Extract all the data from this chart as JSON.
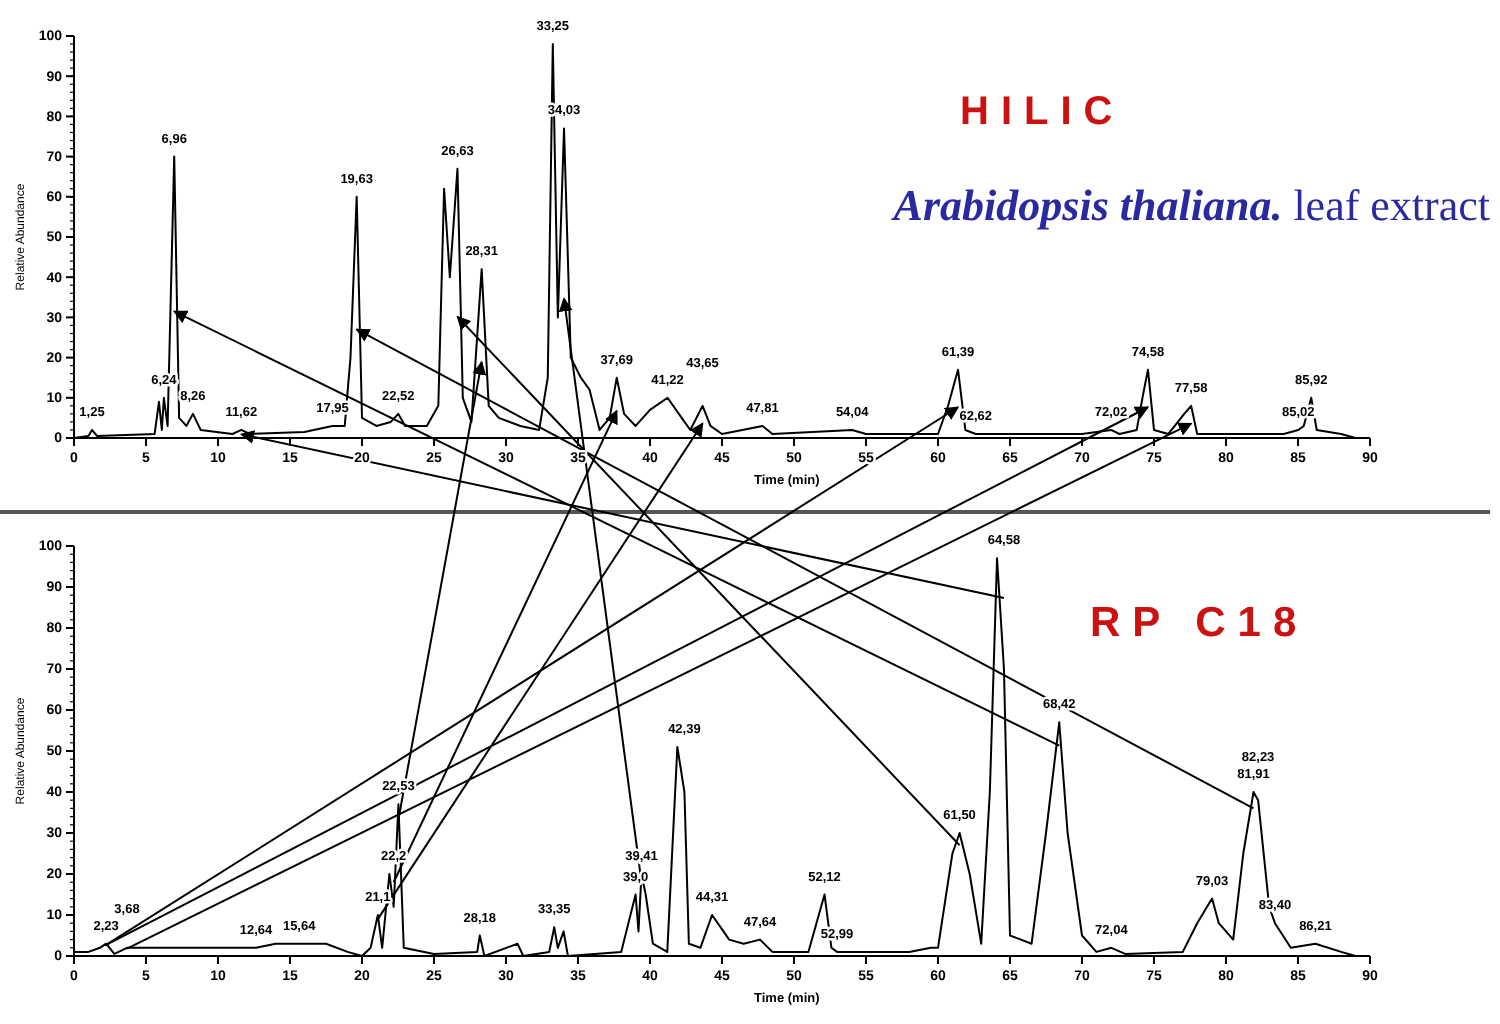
{
  "chart_data": [
    {
      "type": "line",
      "title": "HILIC",
      "subtitle": "Arabidopsis thaliana. leaf extract",
      "xlabel": "Time (min)",
      "ylabel": "Relative Abundance",
      "xlim": [
        0,
        90
      ],
      "ylim": [
        0,
        100
      ],
      "xticks": [
        0,
        5,
        10,
        15,
        20,
        25,
        30,
        35,
        40,
        45,
        50,
        55,
        60,
        65,
        70,
        75,
        80,
        85,
        90
      ],
      "yticks": [
        0,
        10,
        20,
        30,
        40,
        50,
        60,
        70,
        80,
        90,
        100
      ],
      "grid": false,
      "series": [
        {
          "color": "#000000",
          "x": [
            0,
            1,
            1.25,
            1.6,
            5.6,
            5.9,
            6.1,
            6.24,
            6.5,
            6.96,
            7.3,
            7.8,
            8.26,
            8.8,
            11,
            11.62,
            12.2,
            16,
            17.95,
            18.8,
            19.2,
            19.63,
            20,
            21,
            22,
            22.52,
            23,
            24.5,
            25.3,
            25.7,
            26.1,
            26.63,
            27,
            27.6,
            28.31,
            28.8,
            29.5,
            31,
            32.3,
            32.9,
            33.25,
            33.6,
            34.03,
            34.5,
            35.2,
            35.8,
            36.5,
            37.2,
            37.69,
            38.2,
            39,
            40,
            41.22,
            42.2,
            42.8,
            43.65,
            44.2,
            45,
            47.81,
            48.5,
            54.04,
            55,
            60,
            60.7,
            61.39,
            61.9,
            62.62,
            66,
            70,
            72.02,
            72.6,
            73.8,
            74.2,
            74.58,
            75,
            76,
            77.1,
            77.58,
            78,
            84,
            85.02,
            85.4,
            85.92,
            86.3,
            88,
            89
          ],
          "values": [
            0,
            0.5,
            2,
            0.5,
            1,
            9,
            2,
            10,
            3,
            70,
            5,
            3,
            6,
            2,
            1,
            2,
            1,
            1.5,
            3,
            3,
            20,
            60,
            5,
            3,
            4,
            6,
            3,
            3,
            8,
            62,
            40,
            67,
            10,
            4,
            42,
            8,
            5,
            3,
            2,
            15,
            98,
            30,
            77,
            20,
            15,
            12,
            2,
            5,
            15,
            6,
            3,
            7,
            10,
            5,
            2,
            8,
            3,
            1,
            3,
            1,
            2,
            1,
            1,
            8,
            17,
            2,
            1,
            1,
            1,
            2,
            1,
            2,
            10,
            17,
            2,
            1,
            6,
            8,
            1,
            1,
            2,
            3,
            10,
            2,
            1,
            0
          ]
        }
      ],
      "annotations": [
        {
          "text": "1,25",
          "x": 1.25,
          "y": 2
        },
        {
          "text": "6,24",
          "x": 6.24,
          "y": 10
        },
        {
          "text": "6,96",
          "x": 6.96,
          "y": 70
        },
        {
          "text": "8,26",
          "x": 8.26,
          "y": 6
        },
        {
          "text": "11,62",
          "x": 11.62,
          "y": 2
        },
        {
          "text": "17,95",
          "x": 17.95,
          "y": 3
        },
        {
          "text": "19,63",
          "x": 19.63,
          "y": 60
        },
        {
          "text": "22,52",
          "x": 22.52,
          "y": 6
        },
        {
          "text": "26,63",
          "x": 26.63,
          "y": 67
        },
        {
          "text": "28,31",
          "x": 28.31,
          "y": 42
        },
        {
          "text": "33,25",
          "x": 33.25,
          "y": 98
        },
        {
          "text": "34,03",
          "x": 34.03,
          "y": 77
        },
        {
          "text": "37,69",
          "x": 37.69,
          "y": 15
        },
        {
          "text": "41,22",
          "x": 41.22,
          "y": 10
        },
        {
          "text": "43,65",
          "x": 43.65,
          "y": 8
        },
        {
          "text": "47,81",
          "x": 47.81,
          "y": 3
        },
        {
          "text": "54,04",
          "x": 54.04,
          "y": 2
        },
        {
          "text": "61,39",
          "x": 61.39,
          "y": 17
        },
        {
          "text": "62,62",
          "x": 62.62,
          "y": 1
        },
        {
          "text": "72,02",
          "x": 72.02,
          "y": 2
        },
        {
          "text": "74,58",
          "x": 74.58,
          "y": 17
        },
        {
          "text": "77,58",
          "x": 77.58,
          "y": 8
        },
        {
          "text": "85,02",
          "x": 85.02,
          "y": 2
        },
        {
          "text": "85,92",
          "x": 85.92,
          "y": 10
        }
      ]
    },
    {
      "type": "line",
      "title": "RP C18",
      "xlabel": "Time (min)",
      "ylabel": "Relative Abundance",
      "xlim": [
        0,
        90
      ],
      "ylim": [
        0,
        100
      ],
      "xticks": [
        0,
        5,
        10,
        15,
        20,
        25,
        30,
        35,
        40,
        45,
        50,
        55,
        60,
        65,
        70,
        75,
        80,
        85,
        90
      ],
      "yticks": [
        0,
        10,
        20,
        30,
        40,
        50,
        60,
        70,
        80,
        90,
        100
      ],
      "grid": false,
      "series": [
        {
          "color": "#000000",
          "x": [
            0,
            1,
            1.8,
            2.23,
            2.8,
            3.68,
            5,
            10,
            12.64,
            14,
            15.64,
            17.5,
            19,
            20,
            20.6,
            21.1,
            21.4,
            21.9,
            22.2,
            22.53,
            22.9,
            25,
            28,
            28.18,
            28.5,
            30.8,
            31.2,
            33,
            33.35,
            33.6,
            34,
            34.3,
            38,
            38.5,
            39,
            39.2,
            39.41,
            39.7,
            40.2,
            41.2,
            41.9,
            42.39,
            42.7,
            43.5,
            44.31,
            45.5,
            46.5,
            47.64,
            48.5,
            51,
            52.12,
            52.6,
            52.99,
            58,
            59.5,
            60,
            61,
            61.5,
            62.2,
            63,
            63.6,
            64.1,
            64.58,
            65,
            66.5,
            67.5,
            68.42,
            69,
            70,
            71,
            72.04,
            73,
            77,
            78,
            79.03,
            79.5,
            80.5,
            81.2,
            81.91,
            82.23,
            83,
            83.4,
            84.5,
            86.21,
            88,
            89
          ],
          "values": [
            1,
            1,
            2,
            3,
            0.5,
            2,
            2,
            2,
            2,
            3,
            3,
            3,
            1,
            0,
            2,
            10,
            2,
            20,
            12,
            37,
            2,
            0.5,
            1,
            5,
            0,
            3,
            0,
            1,
            7,
            2,
            6,
            0,
            1,
            8,
            15,
            6,
            20,
            15,
            3,
            1,
            51,
            40,
            3,
            2,
            10,
            4,
            3,
            4,
            1,
            1,
            15,
            2,
            1,
            1,
            2,
            2,
            25,
            30,
            20,
            3,
            40,
            97,
            70,
            5,
            3,
            30,
            57,
            30,
            5,
            1,
            2,
            0.5,
            1,
            8,
            14,
            8,
            4,
            25,
            40,
            38,
            12,
            8,
            2,
            3,
            1,
            0
          ]
        }
      ],
      "annotations": [
        {
          "text": "2,23",
          "x": 2.23,
          "y": 3
        },
        {
          "text": "3,68",
          "x": 3.68,
          "y": 2
        },
        {
          "text": "12,64",
          "x": 12.64,
          "y": 2
        },
        {
          "text": "15,64",
          "x": 15.64,
          "y": 3
        },
        {
          "text": "21,1",
          "x": 21.1,
          "y": 10
        },
        {
          "text": "22,2",
          "x": 22.2,
          "y": 20
        },
        {
          "text": "22,53",
          "x": 22.53,
          "y": 37
        },
        {
          "text": "28,18",
          "x": 28.18,
          "y": 5
        },
        {
          "text": "33,35",
          "x": 33.35,
          "y": 7
        },
        {
          "text": "39,0",
          "x": 39,
          "y": 15
        },
        {
          "text": "39,41",
          "x": 39.41,
          "y": 20
        },
        {
          "text": "42,39",
          "x": 42.39,
          "y": 51
        },
        {
          "text": "44,31",
          "x": 44.31,
          "y": 10
        },
        {
          "text": "47,64",
          "x": 47.64,
          "y": 4
        },
        {
          "text": "52,12",
          "x": 52.12,
          "y": 15
        },
        {
          "text": "52,99",
          "x": 52.99,
          "y": 1
        },
        {
          "text": "61,50",
          "x": 61.5,
          "y": 30
        },
        {
          "text": "64,58",
          "x": 64.58,
          "y": 97
        },
        {
          "text": "68,42",
          "x": 68.42,
          "y": 57
        },
        {
          "text": "72,04",
          "x": 72.04,
          "y": 2
        },
        {
          "text": "79,03",
          "x": 79.03,
          "y": 14
        },
        {
          "text": "81,91",
          "x": 81.91,
          "y": 40
        },
        {
          "text": "82,23",
          "x": 82.23,
          "y": 38
        },
        {
          "text": "83,40",
          "x": 83.4,
          "y": 8
        },
        {
          "text": "86,21",
          "x": 86.21,
          "y": 3
        }
      ]
    }
  ]
}
